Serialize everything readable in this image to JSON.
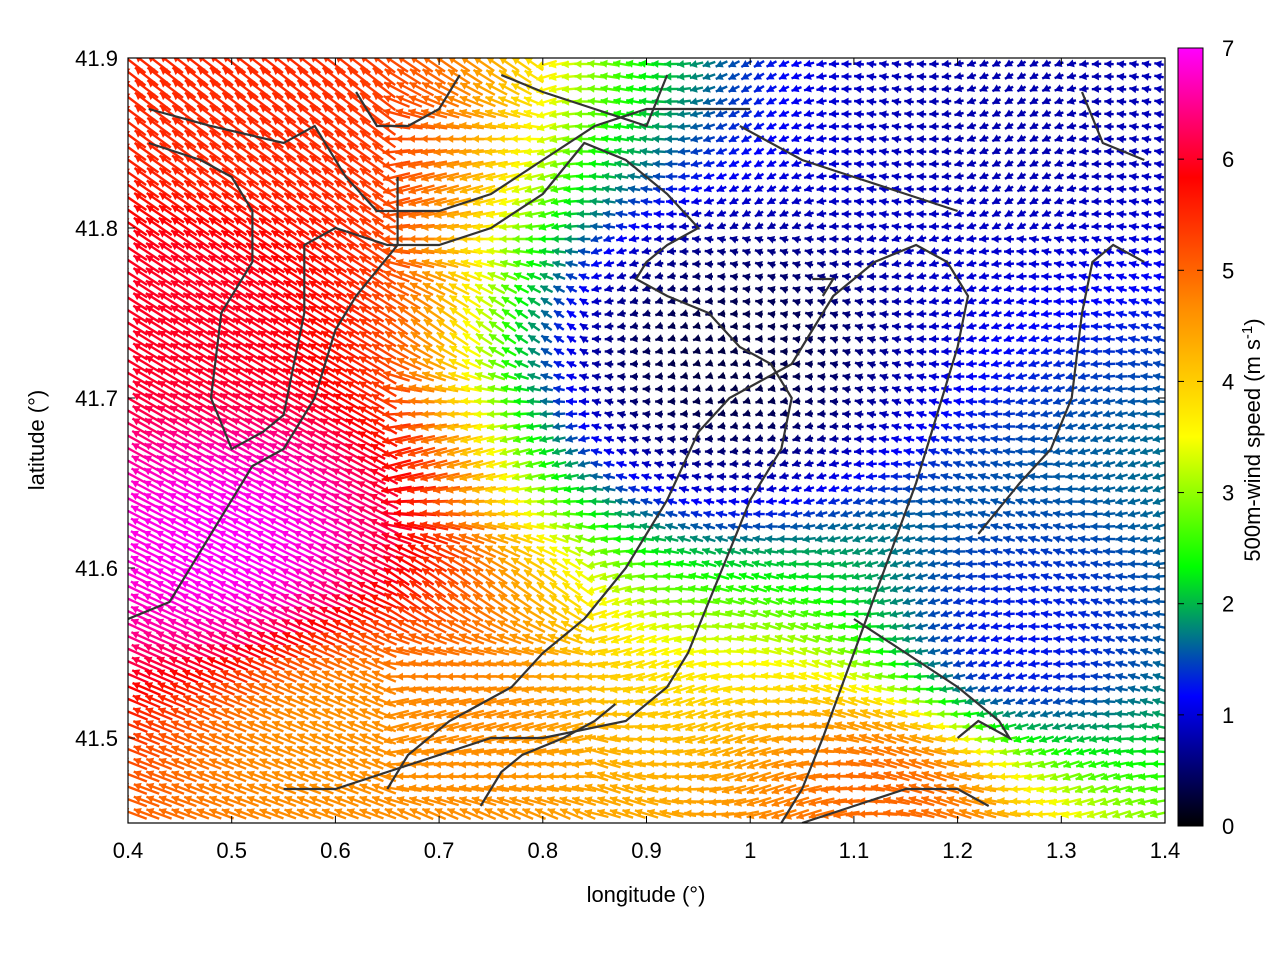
{
  "chart_data": {
    "type": "vector-field",
    "xlabel": "longitude (°)",
    "ylabel": "latitude (°)",
    "xlim": [
      0.4,
      1.4
    ],
    "ylim": [
      41.45,
      41.9
    ],
    "xticks": [
      "0.4",
      "0.5",
      "0.6",
      "0.7",
      "0.8",
      "0.9",
      "1",
      "1.1",
      "1.2",
      "1.3",
      "1.4"
    ],
    "yticks": [
      "41.5",
      "41.6",
      "41.7",
      "41.8",
      "41.9"
    ],
    "colorbar": {
      "label_main": "500m-wind speed (m s",
      "label_sup": "-1",
      "label_close": ")",
      "range": [
        0,
        7
      ],
      "ticks": [
        "0",
        "1",
        "2",
        "3",
        "4",
        "5",
        "6",
        "7"
      ],
      "palette": [
        "#000000",
        "#0000ff",
        "#00ff00",
        "#ffff00",
        "#ff8c00",
        "#ff0000",
        "#ff00ff"
      ]
    },
    "field_model": {
      "base_direction": "from east (arrows pointing west)",
      "speed_centers": [
        {
          "lon": 0.5,
          "lat": 41.61,
          "speed": 7.0
        },
        {
          "lon": 0.45,
          "lat": 41.76,
          "speed": 6.0
        },
        {
          "lon": 0.48,
          "lat": 41.86,
          "speed": 5.5
        },
        {
          "lon": 0.6,
          "lat": 41.5,
          "speed": 4.6
        },
        {
          "lon": 0.97,
          "lat": 41.72,
          "speed": 0.3
        },
        {
          "lon": 1.25,
          "lat": 41.88,
          "speed": 0.8
        },
        {
          "lon": 1.25,
          "lat": 41.55,
          "speed": 1.2
        },
        {
          "lon": 1.14,
          "lat": 41.47,
          "speed": 5.0
        }
      ]
    },
    "contours": [
      [
        [
          0.42,
          41.87
        ],
        [
          0.48,
          41.86
        ],
        [
          0.55,
          41.85
        ],
        [
          0.58,
          41.86
        ],
        [
          0.61,
          41.83
        ],
        [
          0.64,
          41.81
        ],
        [
          0.7,
          41.81
        ],
        [
          0.75,
          41.82
        ],
        [
          0.8,
          41.84
        ],
        [
          0.85,
          41.86
        ],
        [
          0.9,
          41.87
        ],
        [
          0.95,
          41.87
        ],
        [
          1.0,
          41.87
        ]
      ],
      [
        [
          0.42,
          41.85
        ],
        [
          0.47,
          41.84
        ],
        [
          0.5,
          41.83
        ],
        [
          0.52,
          41.81
        ],
        [
          0.52,
          41.78
        ],
        [
          0.49,
          41.75
        ],
        [
          0.48,
          41.7
        ],
        [
          0.5,
          41.67
        ],
        [
          0.53,
          41.68
        ],
        [
          0.55,
          41.69
        ],
        [
          0.56,
          41.72
        ],
        [
          0.57,
          41.75
        ],
        [
          0.57,
          41.79
        ],
        [
          0.6,
          41.8
        ],
        [
          0.65,
          41.79
        ],
        [
          0.7,
          41.79
        ],
        [
          0.75,
          41.8
        ],
        [
          0.8,
          41.82
        ],
        [
          0.84,
          41.85
        ],
        [
          0.88,
          41.84
        ],
        [
          0.92,
          41.82
        ],
        [
          0.95,
          41.8
        ],
        [
          0.92,
          41.79
        ],
        [
          0.9,
          41.78
        ],
        [
          0.89,
          41.77
        ],
        [
          0.92,
          41.76
        ],
        [
          0.96,
          41.75
        ],
        [
          0.99,
          41.73
        ],
        [
          1.02,
          41.72
        ],
        [
          1.04,
          41.7
        ],
        [
          1.03,
          41.67
        ],
        [
          1.0,
          41.64
        ],
        [
          0.98,
          41.61
        ],
        [
          0.96,
          41.58
        ],
        [
          0.94,
          41.55
        ],
        [
          0.92,
          41.53
        ],
        [
          0.88,
          41.51
        ],
        [
          0.8,
          41.5
        ],
        [
          0.75,
          41.5
        ],
        [
          0.7,
          41.49
        ],
        [
          0.65,
          41.48
        ],
        [
          0.6,
          41.47
        ],
        [
          0.55,
          41.47
        ]
      ],
      [
        [
          0.4,
          41.57
        ],
        [
          0.44,
          41.58
        ],
        [
          0.48,
          41.62
        ],
        [
          0.52,
          41.66
        ],
        [
          0.55,
          41.67
        ],
        [
          0.58,
          41.7
        ],
        [
          0.6,
          41.74
        ],
        [
          0.62,
          41.76
        ],
        [
          0.66,
          41.79
        ],
        [
          0.66,
          41.83
        ]
      ],
      [
        [
          0.65,
          41.47
        ],
        [
          0.67,
          41.49
        ],
        [
          0.71,
          41.51
        ],
        [
          0.74,
          41.52
        ],
        [
          0.77,
          41.53
        ],
        [
          0.8,
          41.55
        ],
        [
          0.84,
          41.57
        ],
        [
          0.88,
          41.6
        ],
        [
          0.92,
          41.64
        ],
        [
          0.95,
          41.68
        ],
        [
          0.98,
          41.7
        ],
        [
          1.01,
          41.71
        ],
        [
          1.04,
          41.72
        ],
        [
          1.06,
          41.74
        ],
        [
          1.08,
          41.76
        ],
        [
          1.12,
          41.78
        ],
        [
          1.16,
          41.79
        ],
        [
          1.19,
          41.78
        ],
        [
          1.21,
          41.76
        ],
        [
          1.2,
          41.73
        ],
        [
          1.18,
          41.69
        ],
        [
          1.16,
          41.65
        ],
        [
          1.13,
          41.6
        ],
        [
          1.1,
          41.55
        ],
        [
          1.07,
          41.5
        ],
        [
          1.05,
          41.47
        ],
        [
          1.03,
          41.45
        ]
      ],
      [
        [
          1.23,
          41.46
        ],
        [
          1.2,
          41.47
        ],
        [
          1.15,
          41.47
        ],
        [
          1.1,
          41.46
        ],
        [
          1.05,
          41.45
        ]
      ],
      [
        [
          1.22,
          41.62
        ],
        [
          1.26,
          41.65
        ],
        [
          1.29,
          41.67
        ],
        [
          1.31,
          41.7
        ],
        [
          1.32,
          41.75
        ],
        [
          1.33,
          41.78
        ],
        [
          1.35,
          41.79
        ],
        [
          1.38,
          41.78
        ]
      ],
      [
        [
          1.1,
          41.57
        ],
        [
          1.15,
          41.55
        ],
        [
          1.2,
          41.53
        ],
        [
          1.24,
          41.51
        ],
        [
          1.25,
          41.5
        ],
        [
          1.22,
          41.51
        ],
        [
          1.2,
          41.5
        ]
      ],
      [
        [
          0.62,
          41.88
        ],
        [
          0.64,
          41.86
        ],
        [
          0.67,
          41.86
        ],
        [
          0.7,
          41.87
        ],
        [
          0.72,
          41.89
        ]
      ],
      [
        [
          0.76,
          41.89
        ],
        [
          0.8,
          41.88
        ],
        [
          0.85,
          41.87
        ],
        [
          0.9,
          41.86
        ],
        [
          0.92,
          41.89
        ]
      ],
      [
        [
          0.99,
          41.86
        ],
        [
          1.05,
          41.84
        ],
        [
          1.1,
          41.83
        ],
        [
          1.15,
          41.82
        ],
        [
          1.2,
          41.81
        ]
      ],
      [
        [
          1.32,
          41.88
        ],
        [
          1.34,
          41.85
        ],
        [
          1.38,
          41.84
        ]
      ],
      [
        [
          0.74,
          41.46
        ],
        [
          0.76,
          41.48
        ],
        [
          0.78,
          41.49
        ],
        [
          0.82,
          41.5
        ],
        [
          0.85,
          41.51
        ],
        [
          0.87,
          41.52
        ]
      ],
      [
        [
          1.06,
          41.77
        ],
        [
          1.08,
          41.77
        ],
        [
          1.07,
          41.76
        ]
      ]
    ]
  }
}
